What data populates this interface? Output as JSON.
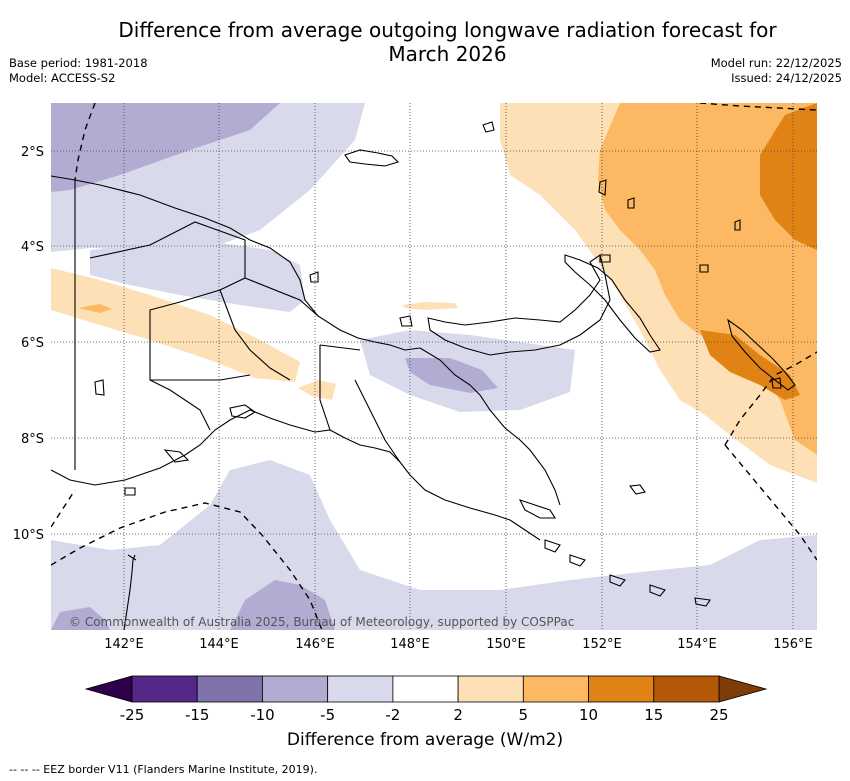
{
  "header": {
    "title_line1": "Difference from average outgoing longwave radiation forecast for",
    "title_line2": "March 2026",
    "base_period": "Base period: 1981-2018",
    "model": "Model: ACCESS-S2",
    "model_run": "Model run: 22/12/2025",
    "issued": "Issued: 24/12/2025"
  },
  "map": {
    "region": "Papua New Guinea",
    "lat_labels": [
      "2°S",
      "4°S",
      "6°S",
      "8°S",
      "10°S"
    ],
    "lon_labels": [
      "142°E",
      "144°E",
      "146°E",
      "148°E",
      "150°E",
      "152°E",
      "154°E",
      "156°E"
    ],
    "copyright": "© Commonwealth of Australia 2025, Bureau of Meteorology, supported by COSPPac"
  },
  "colorbar": {
    "title": "Difference from average (W/m2)",
    "ticks": [
      "-25",
      "-15",
      "-10",
      "-5",
      "-2",
      "2",
      "5",
      "10",
      "15",
      "25"
    ],
    "colors": [
      "#542788",
      "#8073ac",
      "#b2abd2",
      "#d8daeb",
      "#ffffff",
      "#fee0b6",
      "#fdb863",
      "#e08214",
      "#b35806"
    ],
    "under_color": "#2d004b",
    "over_color": "#7f3b08"
  },
  "legend": {
    "text": "--  --  -- EEZ border V11 (Flanders Marine Institute, 2019)."
  }
}
